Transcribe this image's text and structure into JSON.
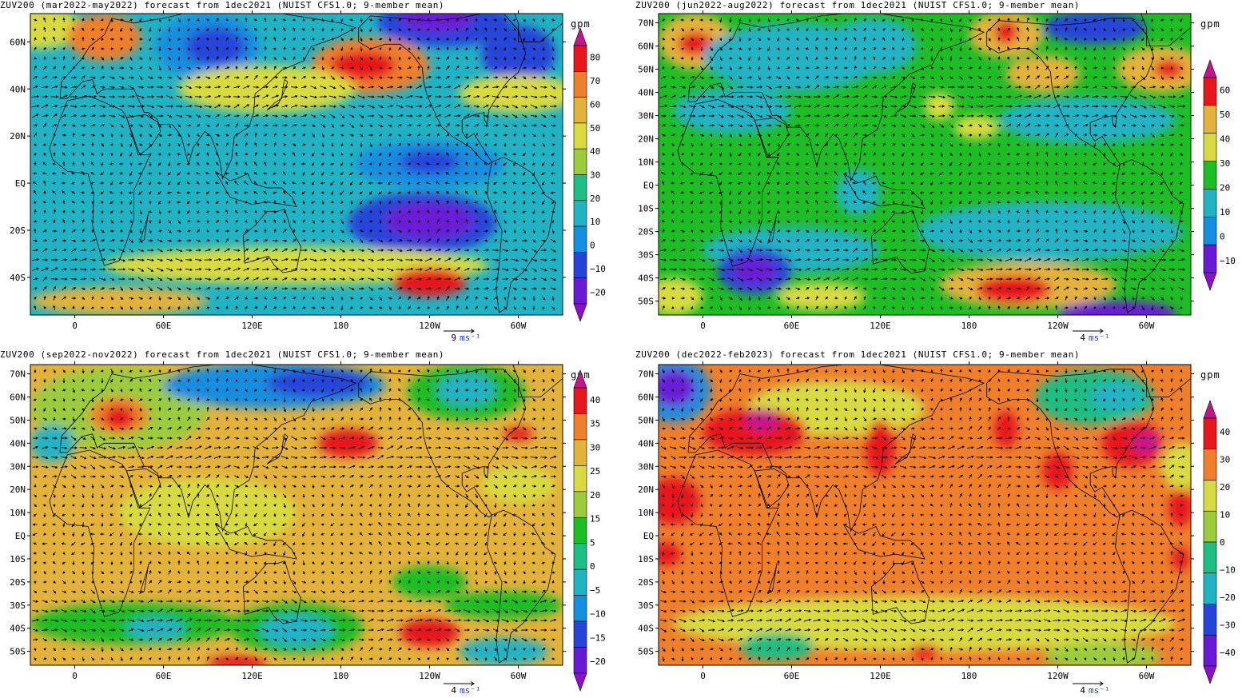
{
  "panels": [
    {
      "title": "ZUV200 (mar2022-may2022) forecast from 1dec2021 (NUIST CFS1.0; 9-member mean)",
      "lat_labels": [
        "60N",
        "40N",
        "20N",
        "EQ",
        "20S",
        "40S"
      ],
      "lat_values": [
        60,
        40,
        20,
        0,
        -20,
        -40
      ],
      "lat_range": [
        -56,
        72
      ],
      "lon_labels": [
        "0",
        "60E",
        "120E",
        "180",
        "120W",
        "60W"
      ],
      "unit": "gpm",
      "colorbar": {
        "labels": [
          "80",
          "70",
          "60",
          "50",
          "40",
          "30",
          "20",
          "10",
          "0",
          "−10",
          "−20"
        ],
        "colors": [
          "#c8148c",
          "#e8151b",
          "#ef7f2a",
          "#e3b23a",
          "#d8da3f",
          "#9bcc3c",
          "#1dbe84",
          "#20b3c4",
          "#148ee0",
          "#2544d9",
          "#6a1ad6",
          "#8c10c8"
        ]
      },
      "vector_ref": {
        "value": "9",
        "unit": "ms⁻¹"
      },
      "background_color": "#20b3c4",
      "blobs": [
        {
          "lon": -25,
          "lat": 66,
          "rx": 30,
          "ry": 9,
          "color": "#d8da3f"
        },
        {
          "lon": 20,
          "lat": 62,
          "rx": 25,
          "ry": 10,
          "color": "#ef7f2a"
        },
        {
          "lon": 90,
          "lat": 58,
          "rx": 35,
          "ry": 14,
          "color": "#148ee0"
        },
        {
          "lon": 95,
          "lat": 58,
          "rx": 20,
          "ry": 8,
          "color": "#2544d9"
        },
        {
          "lon": 200,
          "lat": 50,
          "rx": 40,
          "ry": 12,
          "color": "#ef7f2a"
        },
        {
          "lon": 195,
          "lat": 50,
          "rx": 22,
          "ry": 6,
          "color": "#e8151b"
        },
        {
          "lon": 250,
          "lat": 68,
          "rx": 45,
          "ry": 10,
          "color": "#2544d9"
        },
        {
          "lon": 245,
          "lat": 70,
          "rx": 25,
          "ry": 6,
          "color": "#6a1ad6"
        },
        {
          "lon": 300,
          "lat": 55,
          "rx": 25,
          "ry": 12,
          "color": "#2544d9"
        },
        {
          "lon": 130,
          "lat": 40,
          "rx": 60,
          "ry": 10,
          "color": "#d8da3f"
        },
        {
          "lon": 300,
          "lat": 38,
          "rx": 40,
          "ry": 8,
          "color": "#d8da3f"
        },
        {
          "lon": 240,
          "lat": 8,
          "rx": 50,
          "ry": 10,
          "color": "#148ee0"
        },
        {
          "lon": 240,
          "lat": 9,
          "rx": 20,
          "ry": 5,
          "color": "#2544d9"
        },
        {
          "lon": 235,
          "lat": -17,
          "rx": 50,
          "ry": 13,
          "color": "#2544d9"
        },
        {
          "lon": 240,
          "lat": -16,
          "rx": 30,
          "ry": 8,
          "color": "#6a1ad6"
        },
        {
          "lon": 150,
          "lat": -35,
          "rx": 130,
          "ry": 8,
          "color": "#d8da3f"
        },
        {
          "lon": 240,
          "lat": -42,
          "rx": 25,
          "ry": 6,
          "color": "#e8151b"
        },
        {
          "lon": 30,
          "lat": -50,
          "rx": 60,
          "ry": 6,
          "color": "#e3b23a"
        }
      ]
    },
    {
      "title": "ZUV200 (jun2022-aug2022) forecast from 1dec2021 (NUIST CFS1.0; 9-member mean)",
      "lat_labels": [
        "70N",
        "60N",
        "50N",
        "40N",
        "30N",
        "20N",
        "10N",
        "EQ",
        "10S",
        "20S",
        "30S",
        "40S",
        "50S"
      ],
      "lat_values": [
        70,
        60,
        50,
        40,
        30,
        20,
        10,
        0,
        -10,
        -20,
        -30,
        -40,
        -50
      ],
      "lat_range": [
        -56,
        74
      ],
      "lon_labels": [
        "0",
        "60E",
        "120E",
        "180",
        "120W",
        "60W"
      ],
      "unit": "gpm",
      "colorbar": {
        "labels": [
          "60",
          "50",
          "40",
          "30",
          "20",
          "10",
          "0",
          "−10"
        ],
        "colors": [
          "#c8148c",
          "#e8151b",
          "#e3b23a",
          "#d8da3f",
          "#1dbe24",
          "#20b3c4",
          "#148ee0",
          "#6a1ad6",
          "#8c10c8"
        ]
      },
      "vector_ref": {
        "value": "4",
        "unit": "ms⁻¹"
      },
      "background_color": "#1dbe24",
      "blobs": [
        {
          "lon": -5,
          "lat": 62,
          "rx": 25,
          "ry": 12,
          "color": "#e3b23a"
        },
        {
          "lon": -5,
          "lat": 61,
          "rx": 12,
          "ry": 5,
          "color": "#e8151b"
        },
        {
          "lon": 60,
          "lat": 55,
          "rx": 60,
          "ry": 15,
          "color": "#20b3c4"
        },
        {
          "lon": 115,
          "lat": 60,
          "rx": 30,
          "ry": 12,
          "color": "#20b3c4"
        },
        {
          "lon": 205,
          "lat": 65,
          "rx": 25,
          "ry": 10,
          "color": "#e3b23a"
        },
        {
          "lon": 205,
          "lat": 66,
          "rx": 8,
          "ry": 5,
          "color": "#e8151b"
        },
        {
          "lon": 265,
          "lat": 68,
          "rx": 35,
          "ry": 7,
          "color": "#2544d9"
        },
        {
          "lon": 310,
          "lat": 50,
          "rx": 30,
          "ry": 10,
          "color": "#e3b23a"
        },
        {
          "lon": 315,
          "lat": 50,
          "rx": 10,
          "ry": 4,
          "color": "#e8151b"
        },
        {
          "lon": 230,
          "lat": 48,
          "rx": 25,
          "ry": 8,
          "color": "#e3b23a"
        },
        {
          "lon": 160,
          "lat": 34,
          "rx": 10,
          "ry": 6,
          "color": "#d8da3f"
        },
        {
          "lon": 185,
          "lat": 25,
          "rx": 15,
          "ry": 5,
          "color": "#d8da3f"
        },
        {
          "lon": 260,
          "lat": 28,
          "rx": 60,
          "ry": 10,
          "color": "#20b3c4"
        },
        {
          "lon": 20,
          "lat": 32,
          "rx": 40,
          "ry": 10,
          "color": "#20b3c4"
        },
        {
          "lon": 105,
          "lat": -3,
          "rx": 15,
          "ry": 10,
          "color": "#20b3c4"
        },
        {
          "lon": 235,
          "lat": -20,
          "rx": 90,
          "ry": 13,
          "color": "#20b3c4"
        },
        {
          "lon": 60,
          "lat": -28,
          "rx": 60,
          "ry": 10,
          "color": "#20b3c4"
        },
        {
          "lon": 35,
          "lat": -37,
          "rx": 25,
          "ry": 10,
          "color": "#2544d9"
        },
        {
          "lon": 35,
          "lat": -37,
          "rx": 15,
          "ry": 6,
          "color": "#6a1ad6"
        },
        {
          "lon": 220,
          "lat": -43,
          "rx": 60,
          "ry": 10,
          "color": "#e3b23a"
        },
        {
          "lon": 210,
          "lat": -45,
          "rx": 25,
          "ry": 6,
          "color": "#e8151b"
        },
        {
          "lon": 280,
          "lat": -55,
          "rx": 40,
          "ry": 5,
          "color": "#6a1ad6"
        },
        {
          "lon": -20,
          "lat": -48,
          "rx": 20,
          "ry": 8,
          "color": "#d8da3f"
        },
        {
          "lon": 80,
          "lat": -48,
          "rx": 30,
          "ry": 6,
          "color": "#d8da3f"
        }
      ]
    },
    {
      "title": "ZUV200 (sep2022-nov2022) forecast from 1dec2021 (NUIST CFS1.0; 9-member mean)",
      "lat_labels": [
        "70N",
        "60N",
        "50N",
        "40N",
        "30N",
        "20N",
        "10N",
        "EQ",
        "10S",
        "20S",
        "30S",
        "40S",
        "50S"
      ],
      "lat_values": [
        70,
        60,
        50,
        40,
        30,
        20,
        10,
        0,
        -10,
        -20,
        -30,
        -40,
        -50
      ],
      "lat_range": [
        -56,
        74
      ],
      "lon_labels": [
        "0",
        "60E",
        "120E",
        "180",
        "120W",
        "60W"
      ],
      "unit": "gpm",
      "colorbar": {
        "labels": [
          "40",
          "35",
          "30",
          "25",
          "20",
          "15",
          "5",
          "0",
          "−5",
          "−10",
          "−15",
          "−20"
        ],
        "colors": [
          "#c8148c",
          "#e8151b",
          "#ef7f2a",
          "#e3b23a",
          "#d8da3f",
          "#9bcc3c",
          "#1dbe24",
          "#1dbe84",
          "#20b3c4",
          "#148ee0",
          "#2544d9",
          "#6a1ad6",
          "#8c10c8"
        ]
      },
      "vector_ref": {
        "value": "4",
        "unit": "ms⁻¹"
      },
      "background_color": "#e3b23a",
      "blobs": [
        {
          "lon": 30,
          "lat": 55,
          "rx": 60,
          "ry": 18,
          "color": "#9bcc3c"
        },
        {
          "lon": 30,
          "lat": 52,
          "rx": 20,
          "ry": 8,
          "color": "#ef7f2a"
        },
        {
          "lon": 30,
          "lat": 51,
          "rx": 10,
          "ry": 5,
          "color": "#e8151b"
        },
        {
          "lon": -15,
          "lat": 40,
          "rx": 15,
          "ry": 8,
          "color": "#20b3c4"
        },
        {
          "lon": 135,
          "lat": 65,
          "rx": 75,
          "ry": 10,
          "color": "#148ee0"
        },
        {
          "lon": 165,
          "lat": 66,
          "rx": 35,
          "ry": 6,
          "color": "#2544d9"
        },
        {
          "lon": 265,
          "lat": 62,
          "rx": 40,
          "ry": 12,
          "color": "#1dbe24"
        },
        {
          "lon": 265,
          "lat": 63,
          "rx": 20,
          "ry": 7,
          "color": "#20b3c4"
        },
        {
          "lon": 185,
          "lat": 40,
          "rx": 20,
          "ry": 6,
          "color": "#e8151b"
        },
        {
          "lon": 300,
          "lat": 44,
          "rx": 10,
          "ry": 3,
          "color": "#e8151b"
        },
        {
          "lon": 300,
          "lat": 22,
          "rx": 25,
          "ry": 8,
          "color": "#d8da3f"
        },
        {
          "lon": 90,
          "lat": 10,
          "rx": 60,
          "ry": 15,
          "color": "#d8da3f"
        },
        {
          "lon": 240,
          "lat": -20,
          "rx": 25,
          "ry": 7,
          "color": "#1dbe24"
        },
        {
          "lon": 40,
          "lat": -38,
          "rx": 70,
          "ry": 9,
          "color": "#1dbe24"
        },
        {
          "lon": 55,
          "lat": -40,
          "rx": 20,
          "ry": 5,
          "color": "#20b3c4"
        },
        {
          "lon": 150,
          "lat": -40,
          "rx": 45,
          "ry": 11,
          "color": "#1dbe24"
        },
        {
          "lon": 150,
          "lat": -41,
          "rx": 25,
          "ry": 7,
          "color": "#20b3c4"
        },
        {
          "lon": 240,
          "lat": -42,
          "rx": 20,
          "ry": 6,
          "color": "#e8151b"
        },
        {
          "lon": 110,
          "lat": -55,
          "rx": 20,
          "ry": 3,
          "color": "#e8151b"
        },
        {
          "lon": 290,
          "lat": -50,
          "rx": 30,
          "ry": 6,
          "color": "#20b3c4"
        },
        {
          "lon": 290,
          "lat": -30,
          "rx": 40,
          "ry": 6,
          "color": "#1dbe24"
        }
      ]
    },
    {
      "title": "ZUV200 (dec2022-feb2023) forecast from 1dec2021 (NUIST CFS1.0; 9-member mean)",
      "lat_labels": [
        "70N",
        "60N",
        "50N",
        "40N",
        "30N",
        "20N",
        "10N",
        "EQ",
        "10S",
        "20S",
        "30S",
        "40S",
        "50S"
      ],
      "lat_values": [
        70,
        60,
        50,
        40,
        30,
        20,
        10,
        0,
        -10,
        -20,
        -30,
        -40,
        -50
      ],
      "lat_range": [
        -56,
        74
      ],
      "lon_labels": [
        "0",
        "60E",
        "120E",
        "180",
        "120W",
        "60W"
      ],
      "unit": "gpm",
      "colorbar": {
        "labels": [
          "40",
          "30",
          "20",
          "10",
          "0",
          "−10",
          "−20",
          "−30",
          "−40"
        ],
        "colors": [
          "#c8148c",
          "#e8151b",
          "#ef7f2a",
          "#d8da3f",
          "#9bcc3c",
          "#1dbe84",
          "#20b3c4",
          "#2544d9",
          "#6a1ad6",
          "#8c10c8"
        ]
      },
      "vector_ref": {
        "value": "4",
        "unit": "ms⁻¹"
      },
      "background_color": "#ef7f2a",
      "blobs": [
        {
          "lon": -20,
          "lat": 63,
          "rx": 25,
          "ry": 14,
          "color": "#148ee0"
        },
        {
          "lon": -20,
          "lat": 64,
          "rx": 15,
          "ry": 8,
          "color": "#6a1ad6"
        },
        {
          "lon": 90,
          "lat": 55,
          "rx": 60,
          "ry": 12,
          "color": "#d8da3f"
        },
        {
          "lon": 35,
          "lat": 45,
          "rx": 35,
          "ry": 10,
          "color": "#e8151b"
        },
        {
          "lon": 40,
          "lat": 50,
          "rx": 12,
          "ry": 5,
          "color": "#c8148c"
        },
        {
          "lon": 120,
          "lat": 38,
          "rx": 10,
          "ry": 12,
          "color": "#e8151b"
        },
        {
          "lon": 205,
          "lat": 46,
          "rx": 8,
          "ry": 8,
          "color": "#e8151b"
        },
        {
          "lon": 265,
          "lat": 60,
          "rx": 40,
          "ry": 12,
          "color": "#1dbe84"
        },
        {
          "lon": 280,
          "lat": 60,
          "rx": 18,
          "ry": 6,
          "color": "#20b3c4"
        },
        {
          "lon": 240,
          "lat": 28,
          "rx": 10,
          "ry": 8,
          "color": "#e8151b"
        },
        {
          "lon": 290,
          "lat": 40,
          "rx": 20,
          "ry": 10,
          "color": "#e8151b"
        },
        {
          "lon": 300,
          "lat": 40,
          "rx": 10,
          "ry": 5,
          "color": "#c8148c"
        },
        {
          "lon": 325,
          "lat": 30,
          "rx": 15,
          "ry": 10,
          "color": "#d8da3f"
        },
        {
          "lon": -20,
          "lat": 15,
          "rx": 18,
          "ry": 10,
          "color": "#e8151b"
        },
        {
          "lon": 323,
          "lat": 12,
          "rx": 8,
          "ry": 8,
          "color": "#e8151b"
        },
        {
          "lon": -25,
          "lat": -8,
          "rx": 10,
          "ry": 5,
          "color": "#e8151b"
        },
        {
          "lon": 323,
          "lat": -10,
          "rx": 6,
          "ry": 5,
          "color": "#e8151b"
        },
        {
          "lon": 150,
          "lat": -38,
          "rx": 170,
          "ry": 12,
          "color": "#d8da3f"
        },
        {
          "lon": 50,
          "lat": -48,
          "rx": 25,
          "ry": 6,
          "color": "#1dbe84"
        },
        {
          "lon": 150,
          "lat": -50,
          "rx": 10,
          "ry": 3,
          "color": "#e8151b"
        },
        {
          "lon": 270,
          "lat": -52,
          "rx": 40,
          "ry": 6,
          "color": "#9bcc3c"
        }
      ]
    }
  ]
}
